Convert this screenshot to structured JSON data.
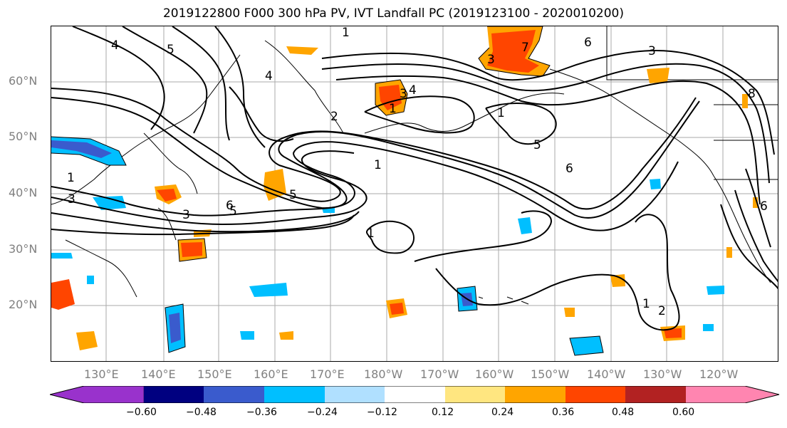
{
  "title": "2019122800 F000 300 hPa PV, IVT Landfall PC (2019123100 - 2020010200)",
  "lat_labels": [
    "60°N",
    "50°N",
    "40°N",
    "30°N",
    "20°N"
  ],
  "lon_labels": [
    "130°E",
    "140°E",
    "150°E",
    "160°E",
    "170°E",
    "180°W",
    "170°W",
    "160°W",
    "150°W",
    "140°W",
    "130°W",
    "120°W"
  ],
  "colorbar": {
    "ticks": [
      "−0.60",
      "−0.48",
      "−0.36",
      "−0.24",
      "−0.12",
      "0.12",
      "0.24",
      "0.36",
      "0.48",
      "0.60"
    ],
    "colors": [
      "#9932cc",
      "#000080",
      "#3a5bcd",
      "#00bfff",
      "#b0e0ff",
      "#ffffff",
      "#ffe680",
      "#ffa500",
      "#ff4500",
      "#b22222",
      "#ff85b0"
    ]
  },
  "contour_labels": [
    "1",
    "1",
    "1",
    "1",
    "1",
    "1",
    "1",
    "2",
    "2",
    "3",
    "3",
    "3",
    "3",
    "3",
    "4",
    "4",
    "4",
    "5",
    "5",
    "5",
    "5",
    "6",
    "6",
    "6",
    "6",
    "7",
    "8"
  ]
}
